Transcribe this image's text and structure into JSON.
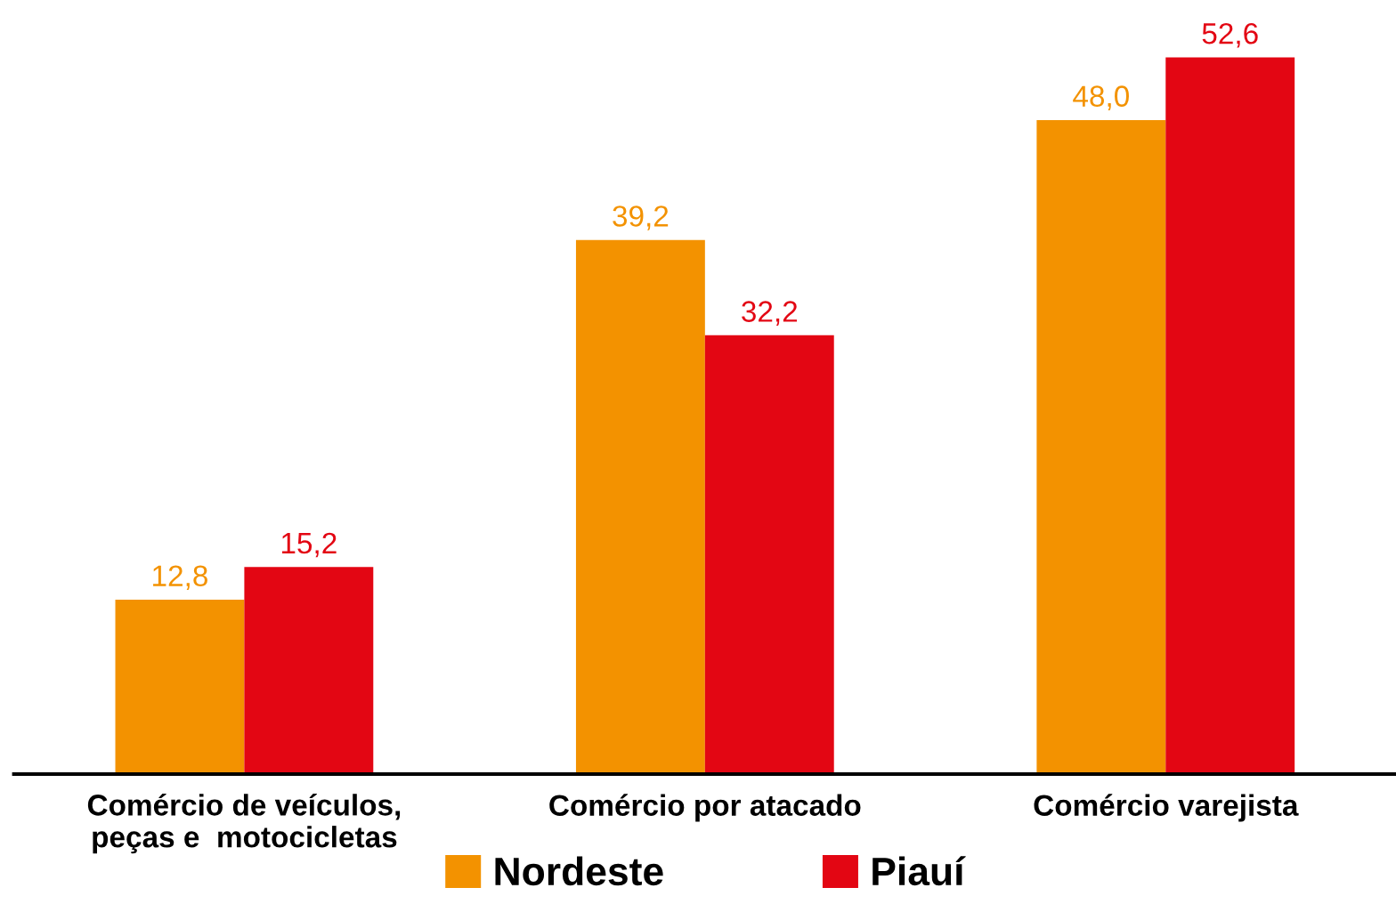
{
  "chart_data": {
    "type": "bar",
    "categories": [
      "Comércio de veículos,\npeças e  motocicletas",
      "Comércio por atacado",
      "Comércio varejista"
    ],
    "series": [
      {
        "name": "Nordeste",
        "color": "#f39200",
        "values": [
          12.8,
          39.2,
          48.0
        ],
        "value_labels": [
          "12,8",
          "39,2",
          "48,0"
        ]
      },
      {
        "name": "Piauí",
        "color": "#e30613",
        "values": [
          15.2,
          32.2,
          52.6
        ],
        "value_labels": [
          "15,2",
          "32,2",
          "52,6"
        ]
      }
    ],
    "legend": "bottom",
    "grid": false
  }
}
